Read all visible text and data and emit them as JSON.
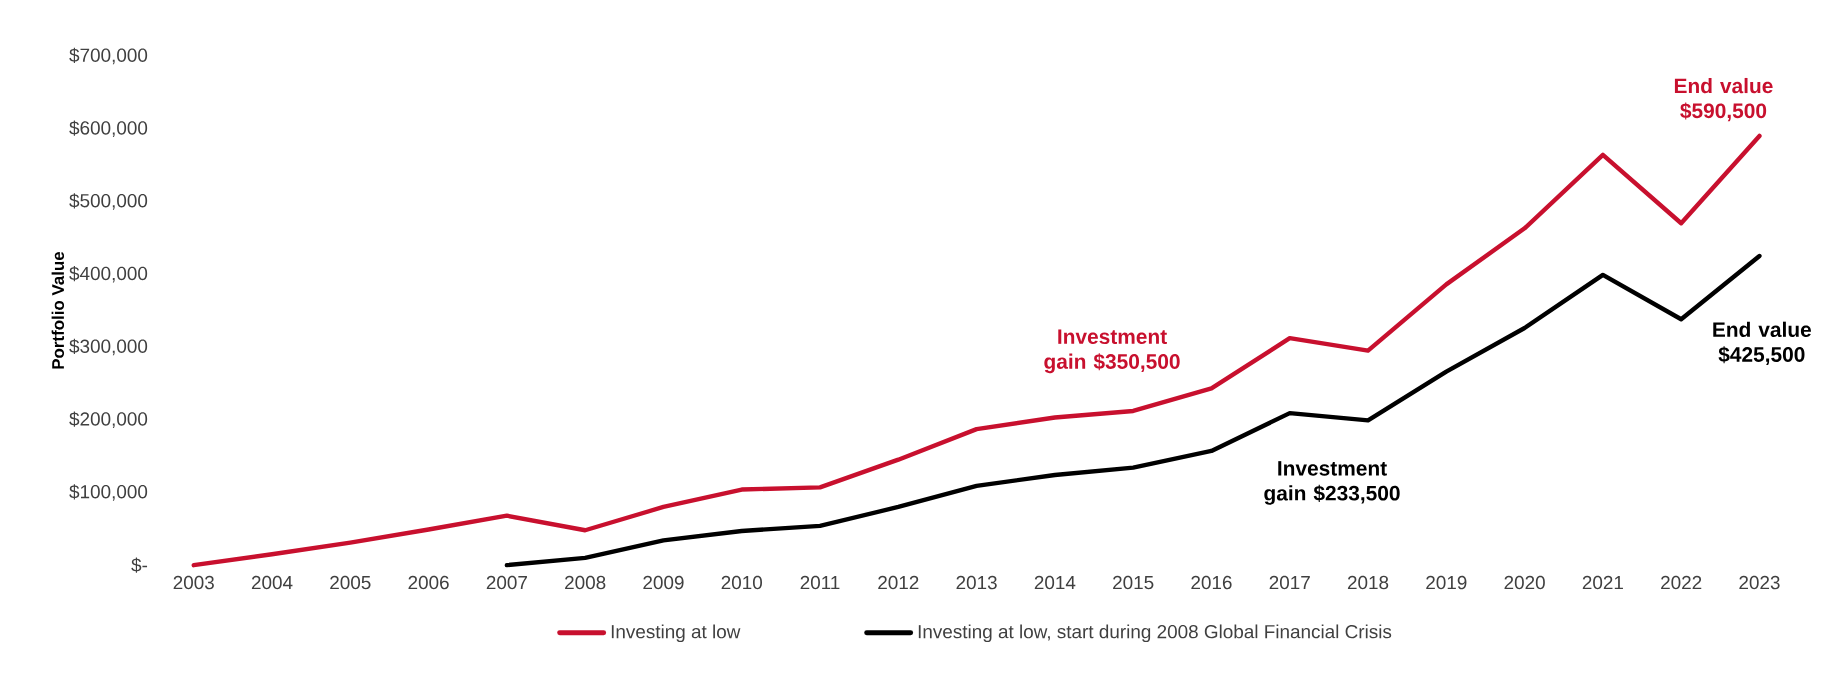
{
  "chart_data": {
    "type": "line",
    "ylabel": "Portfolio Value",
    "categories": [
      "2003",
      "2004",
      "2005",
      "2006",
      "2007",
      "2008",
      "2009",
      "2010",
      "2011",
      "2012",
      "2013",
      "2014",
      "2015",
      "2016",
      "2017",
      "2018",
      "2019",
      "2020",
      "2021",
      "2022",
      "2023"
    ],
    "series": [
      {
        "name": "Investing at low",
        "color": "#c8102e",
        "values": [
          0,
          15000,
          31000,
          49000,
          68000,
          48000,
          80000,
          104000,
          107000,
          145000,
          187000,
          203000,
          212000,
          243000,
          312000,
          295000,
          386000,
          463000,
          564000,
          470000,
          590000
        ]
      },
      {
        "name": "Investing at low, start during 2008 Global Financial Crisis",
        "color": "#000000",
        "values": [
          null,
          null,
          null,
          null,
          0,
          10000,
          34000,
          47000,
          54000,
          80000,
          109000,
          124000,
          134000,
          157000,
          209000,
          199000,
          266000,
          326000,
          399000,
          338000,
          425000
        ]
      }
    ],
    "ylim": [
      0,
      700000
    ],
    "yticks": [
      {
        "value": 0,
        "label": "$-"
      },
      {
        "value": 100000,
        "label": "$100,000"
      },
      {
        "value": 200000,
        "label": "$200,000"
      },
      {
        "value": 300000,
        "label": "$300,000"
      },
      {
        "value": 400000,
        "label": "$400,000"
      },
      {
        "value": 500000,
        "label": "$500,000"
      },
      {
        "value": 600000,
        "label": "$600,000"
      },
      {
        "value": 700000,
        "label": "$700,000"
      }
    ],
    "marker": "none",
    "line_style": "solid",
    "legend": "bottom",
    "annotations": [
      {
        "text": "Investment gain $350,500"
      },
      {
        "text": "Investment gain $233,500"
      },
      {
        "text": "End value $590,500"
      },
      {
        "text": "End value $425,500"
      }
    ]
  }
}
